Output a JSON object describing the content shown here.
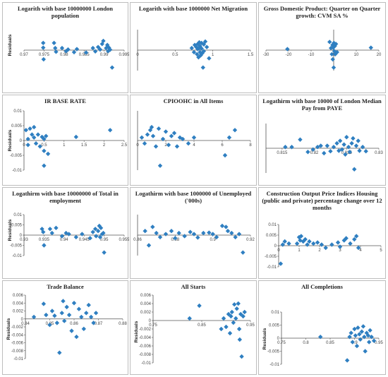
{
  "colors": {
    "marker": "#2f7fc1",
    "axis": "#555555",
    "border": "#bdbdbd"
  },
  "chart_data": [
    {
      "type": "scatter",
      "title": "Logarith with base 10000000 London population",
      "ylabel": "Residuals",
      "xlim": [
        0.97,
        0.995
      ],
      "ylim": [
        -0.01,
        0.01
      ],
      "yaxis_at": 0,
      "xticks": [
        0.97,
        0.975,
        0.98,
        0.985,
        0.99,
        0.995
      ],
      "xtick_labels": [
        "0.97",
        "0.975",
        "0.98",
        "0.985",
        "0.99",
        "0.995"
      ],
      "yticks": [
        0.01,
        0.005,
        0,
        -0.005,
        -0.01
      ],
      "ytick_labels": [
        "0.01",
        "0.005",
        "0",
        "-0.005",
        "-0.01"
      ],
      "x": [
        0.9748,
        0.9748,
        0.9749,
        0.9775,
        0.9778,
        0.978,
        0.9795,
        0.9805,
        0.981,
        0.9825,
        0.9832,
        0.9855,
        0.9872,
        0.9878,
        0.9885,
        0.989,
        0.9895,
        0.9898,
        0.9905,
        0.9908,
        0.991,
        0.9912,
        0.9915,
        0.992
      ],
      "y": [
        0.0035,
        0.0012,
        -0.0045,
        0.0035,
        0.001,
        -0.0008,
        0.001,
        -0.0005,
        0.0003,
        -0.001,
        0.0005,
        -0.0012,
        0.001,
        -0.0006,
        0.0015,
        0.0003,
        0.003,
        0.0045,
        0.001,
        0.0025,
        -0.0005,
        0.0012,
        0.0002,
        -0.0085
      ]
    },
    {
      "type": "scatter",
      "title": "Logarith with base 1000000 Net Migration",
      "ylabel": "",
      "xlim": [
        0,
        1.5
      ],
      "ylim": [
        -0.01,
        0.01
      ],
      "yaxis_at": 0,
      "xticks": [
        0,
        0.5,
        1,
        1.5
      ],
      "xtick_labels": [
        "0",
        "0.5",
        "1",
        "1.5"
      ],
      "yticks": [],
      "ytick_labels": [],
      "x": [
        0.72,
        0.75,
        0.76,
        0.78,
        0.79,
        0.8,
        0.8,
        0.81,
        0.82,
        0.82,
        0.83,
        0.83,
        0.84,
        0.85,
        0.85,
        0.86,
        0.87,
        0.88,
        0.88,
        0.9,
        0.92,
        0.95
      ],
      "y": [
        0.001,
        -0.001,
        0.0025,
        0.0015,
        -0.002,
        0.003,
        0.0005,
        -0.0035,
        0.0038,
        0.001,
        -0.001,
        0.002,
        -0.0025,
        0.0035,
        0.0008,
        -0.0015,
        -0.0085,
        0.0028,
        -0.0005,
        0.0042,
        0.0015,
        -0.004
      ]
    },
    {
      "type": "scatter",
      "title": "Gross Domestic Product: Quarter on Quarter growth: CVM SA %",
      "ylabel": "",
      "xlim": [
        -30,
        20
      ],
      "ylim": [
        -0.01,
        0.01
      ],
      "yaxis_at": 0,
      "xticks": [
        -30,
        -20,
        -10,
        0,
        10,
        20
      ],
      "xtick_labels": [
        "-30",
        "-20",
        "-10",
        "0",
        "10",
        "20"
      ],
      "yticks": [],
      "ytick_labels": [],
      "x": [
        -20.5,
        -1.8,
        -1.2,
        -0.8,
        -0.5,
        -0.4,
        -0.2,
        0,
        0.1,
        0.3,
        0.5,
        0.7,
        1,
        1.5,
        16.5
      ],
      "y": [
        0.0005,
        0.004,
        0.001,
        -0.002,
        0.0025,
        -0.0045,
        0.0012,
        -0.0085,
        0.0035,
        -0.0005,
        0.002,
        -0.002,
        0.003,
        -0.001,
        0.0012
      ]
    },
    {
      "type": "scatter",
      "title": "IR BASE RATE",
      "ylabel": "Residuals",
      "xlim": [
        0,
        2.5
      ],
      "ylim": [
        -0.01,
        0.01
      ],
      "yaxis_at": 0,
      "xticks": [
        0,
        0.5,
        1,
        1.5,
        2,
        2.5
      ],
      "xtick_labels": [
        "0",
        "0.5",
        "1",
        "1.5",
        "2",
        "2.5"
      ],
      "yticks": [
        0.01,
        0.005,
        0,
        -0.005,
        -0.01
      ],
      "ytick_labels": [
        "0.01",
        "0.005",
        "0",
        "-0.005",
        "-0.01"
      ],
      "x": [
        0.05,
        0.1,
        0.1,
        0.15,
        0.2,
        0.25,
        0.25,
        0.3,
        0.35,
        0.4,
        0.45,
        0.5,
        0.5,
        0.5,
        0.55,
        0.6,
        1.3,
        2.15
      ],
      "y": [
        0.0035,
        0.0005,
        -0.0015,
        0.004,
        0.002,
        0.0045,
        0.001,
        -0.001,
        0.002,
        -0.002,
        0.0012,
        -0.0035,
        0.0005,
        -0.0085,
        0.0015,
        -0.0045,
        0.0012,
        0.0035
      ]
    },
    {
      "type": "scatter",
      "title": "CPIOOHC in All Items",
      "ylabel": "",
      "xlim": [
        0,
        8
      ],
      "ylim": [
        -0.01,
        0.01
      ],
      "yaxis_at": 0,
      "xticks": [
        0,
        2,
        4,
        6,
        8
      ],
      "xtick_labels": [
        "0",
        "2",
        "4",
        "6",
        "8"
      ],
      "yticks": [],
      "ytick_labels": [],
      "x": [
        0.3,
        0.5,
        0.7,
        0.9,
        1.0,
        1.1,
        1.3,
        1.5,
        1.6,
        1.8,
        2.0,
        2.2,
        2.4,
        2.6,
        2.8,
        3.0,
        3.2,
        3.6,
        4.0,
        6.2,
        6.5,
        6.9
      ],
      "y": [
        0.001,
        -0.001,
        0.002,
        0.0035,
        0.0045,
        0.0015,
        -0.002,
        0.004,
        -0.0085,
        0.0005,
        0.003,
        -0.0015,
        0.0015,
        0.0025,
        -0.002,
        0.001,
        0.0005,
        -0.001,
        0.001,
        -0.005,
        0.001,
        0.0035
      ]
    },
    {
      "type": "scatter",
      "title": "Logathirm with base 10000 of London Median Pay from PAYE",
      "ylabel": "",
      "xlim": [
        0.8125,
        0.83
      ],
      "ylim": [
        -0.01,
        0.01
      ],
      "yaxis_at": 0.8125,
      "xticks": [
        0.815,
        0.82,
        0.825,
        0.83
      ],
      "xtick_labels": [
        "0.815",
        "0.82",
        "0.825",
        "0.83"
      ],
      "yticks": [],
      "ytick_labels": [],
      "x": [
        0.8155,
        0.8165,
        0.8178,
        0.819,
        0.8198,
        0.8205,
        0.821,
        0.8215,
        0.822,
        0.8225,
        0.823,
        0.8235,
        0.8238,
        0.824,
        0.8243,
        0.8246,
        0.8248,
        0.825,
        0.8253,
        0.8255,
        0.8258,
        0.826,
        0.8262,
        0.8265,
        0.8268,
        0.827,
        0.8275,
        0.828
      ],
      "y": [
        0.0005,
        0.0005,
        0.0035,
        -0.0015,
        -0.0005,
        0.0005,
        0.001,
        -0.002,
        0.001,
        -0.0012,
        0.0005,
        0.002,
        -0.001,
        0.003,
        -0.0005,
        0.0015,
        -0.0025,
        0.0045,
        0.0005,
        -0.0015,
        0.002,
        0.004,
        -0.0085,
        0.001,
        0.003,
        -0.001,
        0.0005,
        -0.0012
      ]
    },
    {
      "type": "scatter",
      "title": "Logathirm with base 10000000 of Total in    employment",
      "ylabel": "Residuals",
      "xlim": [
        0.93,
        0.955
      ],
      "ylim": [
        -0.01,
        0.01
      ],
      "yaxis_at": 0.93,
      "xticks": [
        0.93,
        0.935,
        0.94,
        0.945,
        0.95,
        0.955
      ],
      "xtick_labels": [
        "0.93",
        "0.935",
        "0.94",
        "0.945",
        "0.95",
        "0.955"
      ],
      "yticks": [
        0.01,
        0.005,
        0,
        -0.005,
        -0.01
      ],
      "ytick_labels": [
        "0.01",
        "0.005",
        "0",
        "-0.005",
        "-0.01"
      ],
      "x": [
        0.9345,
        0.9348,
        0.935,
        0.9365,
        0.937,
        0.938,
        0.9395,
        0.9405,
        0.9412,
        0.943,
        0.9445,
        0.9465,
        0.9472,
        0.9478,
        0.948,
        0.9485,
        0.9488,
        0.949,
        0.9492,
        0.9495,
        0.9498,
        0.95
      ],
      "y": [
        0.003,
        0.0015,
        -0.005,
        0.003,
        0.001,
        0.0035,
        -0.0005,
        0.001,
        0.0005,
        -0.001,
        0.0005,
        -0.0015,
        0.0015,
        0.003,
        -0.0005,
        0.002,
        0.0045,
        -0.001,
        0.0035,
        0.0005,
        0.001,
        -0.0085
      ]
    },
    {
      "type": "scatter",
      "title": "Logathirm with base 1000000 of Unemployed ('000s)",
      "ylabel": "",
      "xlim": [
        0.86,
        0.92
      ],
      "ylim": [
        -0.01,
        0.01
      ],
      "yaxis_at": 0.86,
      "xticks": [
        0.86,
        0.88,
        0.9,
        0.92
      ],
      "xtick_labels": [
        "0.86",
        "0.88",
        "0.9",
        "0.92"
      ],
      "yticks": [],
      "ytick_labels": [],
      "x": [
        0.864,
        0.866,
        0.868,
        0.87,
        0.872,
        0.875,
        0.878,
        0.88,
        0.882,
        0.885,
        0.888,
        0.89,
        0.892,
        0.895,
        0.898,
        0.9,
        0.902,
        0.905,
        0.907,
        0.908,
        0.91,
        0.912,
        0.914,
        0.916
      ],
      "y": [
        0.002,
        -0.005,
        0.004,
        0.001,
        -0.001,
        0.0005,
        0.002,
        -0.0015,
        0.001,
        -0.0005,
        0.0015,
        0.0005,
        -0.0012,
        0.001,
        0.0012,
        0.0005,
        -0.001,
        0.0045,
        0.004,
        0.002,
        0.001,
        -0.001,
        0.0005,
        -0.0085
      ]
    },
    {
      "type": "scatter",
      "title": "Construction Output Price Indices Housing (public and private) percentage change over 12 months",
      "ylabel": "",
      "xlim": [
        0,
        5
      ],
      "ylim": [
        -0.01,
        0.01
      ],
      "yaxis_at": 0,
      "xticks": [
        0,
        1,
        2,
        3,
        4,
        5
      ],
      "xtick_labels": [
        "0",
        "1",
        "2",
        "3",
        "4",
        "5"
      ],
      "yticks": [
        0.01,
        0.005,
        0,
        -0.005,
        -0.01
      ],
      "ytick_labels": [
        "0.01",
        "0.005",
        "0",
        "-0.005",
        "-0.01"
      ],
      "x": [
        0.1,
        0.2,
        0.3,
        0.5,
        0.9,
        1.0,
        1.05,
        1.1,
        1.2,
        1.3,
        1.4,
        1.5,
        1.7,
        1.9,
        2.1,
        2.3,
        2.6,
        2.9,
        3.0,
        3.2,
        3.3,
        3.5,
        3.7,
        3.8,
        3.9
      ],
      "y": [
        -0.0085,
        0.0005,
        0.002,
        0.001,
        0.001,
        0.004,
        0.0025,
        0.0045,
        0.002,
        0.003,
        0.0005,
        0.002,
        0.001,
        0.0015,
        0.0005,
        -0.001,
        0.0005,
        0.0015,
        -0.0005,
        0.0025,
        0.0035,
        0.001,
        0.003,
        0.0045,
        -0.001
      ]
    },
    {
      "type": "scatter",
      "title": "Trade Balance",
      "ylabel": "Residuals",
      "xlim": [
        0.84,
        0.88
      ],
      "ylim": [
        -0.01,
        0.006
      ],
      "yaxis_at": 0.84,
      "xticks": [
        0.84,
        0.85,
        0.86,
        0.87,
        0.88
      ],
      "xtick_labels": [
        "0.84",
        "0.85",
        "0.86",
        "0.87",
        "0.88"
      ],
      "yticks": [
        0.006,
        0.004,
        0.002,
        0,
        -0.002,
        -0.004,
        -0.006,
        -0.008,
        -0.01
      ],
      "ytick_labels": [
        "0.006",
        "0.004",
        "0.002",
        "0",
        "-0.002",
        "-0.004",
        "-0.006",
        "-0.008",
        "-0.01"
      ],
      "x": [
        0.8435,
        0.8475,
        0.8485,
        0.85,
        0.851,
        0.852,
        0.853,
        0.854,
        0.855,
        0.8555,
        0.856,
        0.857,
        0.858,
        0.859,
        0.86,
        0.861,
        0.862,
        0.863,
        0.864,
        0.865,
        0.866,
        0.867,
        0.868,
        0.869
      ],
      "y": [
        0.0005,
        0.0038,
        0.001,
        -0.0015,
        0.002,
        0.0008,
        -0.001,
        -0.0085,
        0.0015,
        0.0045,
        -0.0005,
        0.003,
        0.001,
        -0.003,
        0.004,
        -0.0045,
        0.0025,
        0.0005,
        -0.0025,
        0.0015,
        0.0035,
        0.0005,
        -0.001,
        0.0015
      ]
    },
    {
      "type": "scatter",
      "title": "All Starts",
      "ylabel": "Residuals",
      "xlim": [
        0.75,
        0.95
      ],
      "ylim": [
        -0.01,
        0.006
      ],
      "yaxis_at": 0.75,
      "xticks": [
        0.75,
        0.85,
        0.95
      ],
      "xtick_labels": [
        "0.75",
        "0.85",
        "0.95"
      ],
      "yticks": [
        0.006,
        0.004,
        0.002,
        0,
        -0.002,
        -0.004,
        -0.006,
        -0.008,
        -0.01
      ],
      "ytick_labels": [
        "0.006",
        "0.004",
        "0.002",
        "0",
        "-0.002",
        "-0.004",
        "-0.006",
        "-0.008",
        "-0.01"
      ],
      "x": [
        0.825,
        0.845,
        0.89,
        0.895,
        0.9,
        0.905,
        0.908,
        0.91,
        0.912,
        0.915,
        0.917,
        0.92,
        0.922,
        0.925,
        0.927,
        0.928,
        0.93,
        0.932,
        0.935,
        0.938
      ],
      "y": [
        0.0005,
        0.0035,
        -0.002,
        0.0005,
        -0.0015,
        0.0015,
        -0.003,
        0.001,
        0.002,
        -0.0005,
        0.0038,
        0.0005,
        0.0028,
        0.004,
        -0.002,
        -0.0045,
        0.0015,
        -0.0085,
        0.001,
        0.002
      ]
    },
    {
      "type": "scatter",
      "title": "All Completions",
      "ylabel": "Residuals",
      "xlim": [
        0.75,
        0.95
      ],
      "ylim": [
        -0.01,
        0.01
      ],
      "yaxis_at": 0.75,
      "xticks": [
        0.75,
        0.8,
        0.85,
        0.9,
        0.95
      ],
      "xtick_labels": [
        "0.75",
        "0.8",
        "0.85",
        "0.9",
        "0.95"
      ],
      "yticks": [
        0.01,
        0.005,
        0,
        -0.005,
        -0.01
      ],
      "ytick_labels": [
        "0.01",
        "0.005",
        "0",
        "-0.005",
        "-0.01"
      ],
      "x": [
        0.83,
        0.885,
        0.89,
        0.893,
        0.896,
        0.9,
        0.902,
        0.905,
        0.907,
        0.91,
        0.912,
        0.915,
        0.918,
        0.92,
        0.922,
        0.925,
        0.928,
        0.93,
        0.932,
        0.935,
        0.94
      ],
      "y": [
        0.0005,
        -0.0085,
        0.0005,
        0.002,
        -0.0015,
        0.0035,
        0.001,
        -0.003,
        0.004,
        0.0015,
        -0.0005,
        0.0025,
        0.0045,
        0.0005,
        -0.005,
        0.002,
        0.001,
        -0.0015,
        0.003,
        0.0005,
        -0.001
      ]
    }
  ]
}
